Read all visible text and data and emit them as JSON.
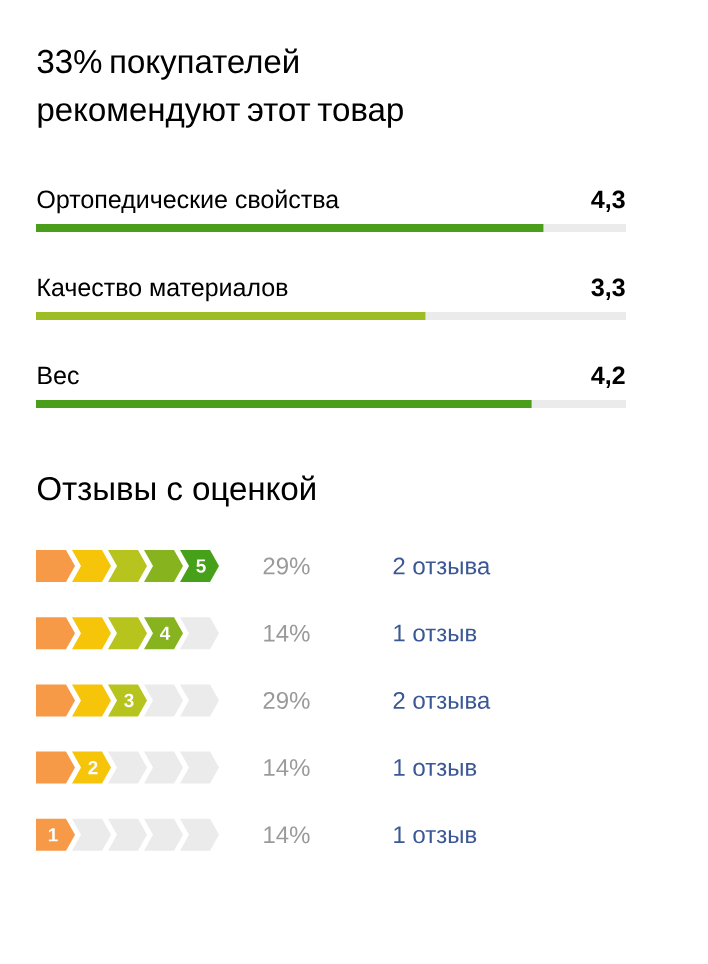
{
  "chart_data": [
    {
      "type": "bar",
      "orientation": "horizontal",
      "title": "33% покупателей рекомендуют этот товар",
      "categories": [
        "Ортопедические свойства",
        "Качество материалов",
        "Вес"
      ],
      "values": [
        4.3,
        3.3,
        4.2
      ],
      "colors": [
        "#4b9e1b",
        "#9dbd25",
        "#4b9e1b"
      ],
      "value_labels": [
        "4,3",
        "3,3",
        "4,2"
      ],
      "xlim": [
        0,
        5
      ],
      "tick_labels": false
    },
    {
      "type": "other",
      "title": "Отзывы с оценкой",
      "categories": [
        "5",
        "4",
        "3",
        "2",
        "1"
      ],
      "colors": [
        "#46a01a",
        "#86b31e",
        "#b7c41d",
        "#f6c50a",
        "#f79a48"
      ],
      "value_labels": [
        "29%",
        "14%",
        "29%",
        "14%",
        "14%"
      ],
      "annotations": [
        "2 отзыва",
        "1 отзыв",
        "2 отзыва",
        "1 отзыв",
        "1 отзыв"
      ]
    }
  ]
}
